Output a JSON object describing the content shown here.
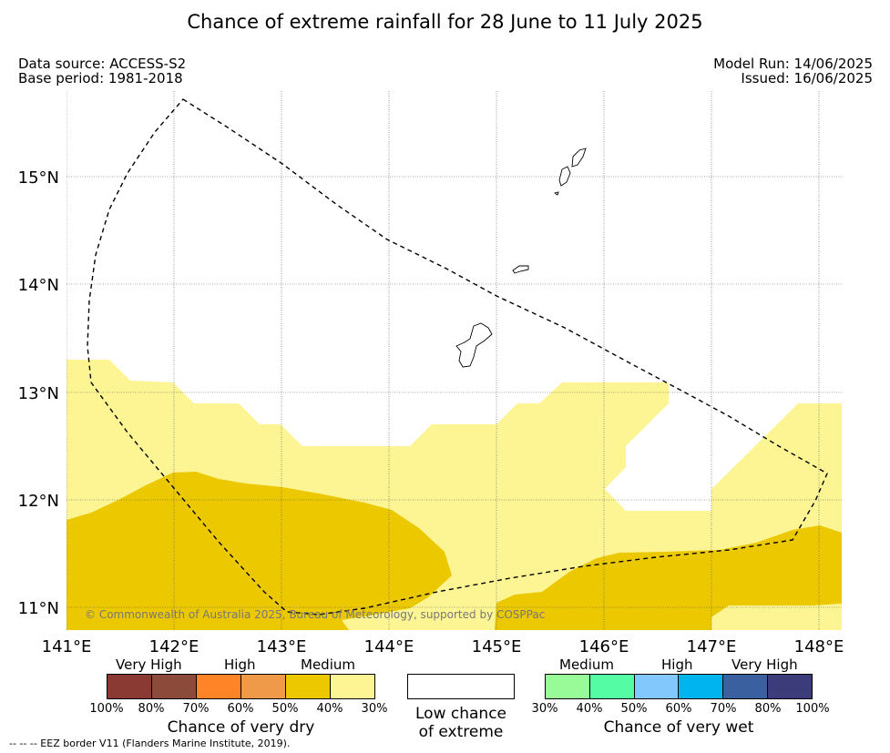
{
  "title": "Chance of extreme rainfall for 28 June to 11 July 2025",
  "data_source": "Data source: ACCESS-S2",
  "base_period": "Base period: 1981-2018",
  "model_run": "Model Run: 14/06/2025",
  "issued": "Issued: 16/06/2025",
  "copyright": "© Commonwealth of Australia 2025, Bureau of Meteorology, supported by COSPPac",
  "map": {
    "lon_ticks": [
      "141°E",
      "142°E",
      "143°E",
      "144°E",
      "145°E",
      "146°E",
      "147°E",
      "148°E"
    ],
    "lat_ticks": [
      "15°N",
      "14°N",
      "13°N",
      "12°N",
      "11°N"
    ],
    "lon_range": [
      141,
      148.2
    ],
    "lat_range": [
      10.8,
      15.8
    ],
    "grid": true,
    "eez_border": "dashed"
  },
  "legend": {
    "dry": {
      "title": "Chance of very dry",
      "categories": [
        "Very High",
        "High",
        "Medium"
      ],
      "colors": [
        "#8b3a33",
        "#8b4a3a",
        "#ff8427",
        "#ef9a49",
        "#ecc800",
        "#fdf593"
      ],
      "ticks": [
        "100%",
        "80%",
        "70%",
        "60%",
        "50%",
        "40%",
        "30%"
      ]
    },
    "low": {
      "line1": "Low chance",
      "line2": "of extreme",
      "color": "#ffffff"
    },
    "wet": {
      "title": "Chance of very wet",
      "categories": [
        "Medium",
        "High",
        "Very High"
      ],
      "colors": [
        "#98fb98",
        "#54fca4",
        "#82c8fc",
        "#00b4ef",
        "#3a60a0",
        "#3c3c7a"
      ],
      "ticks": [
        "30%",
        "40%",
        "50%",
        "60%",
        "70%",
        "80%",
        "100%"
      ]
    }
  },
  "footnote": "-- -- -- EEZ border V11 (Flanders Marine Institute, 2019)."
}
